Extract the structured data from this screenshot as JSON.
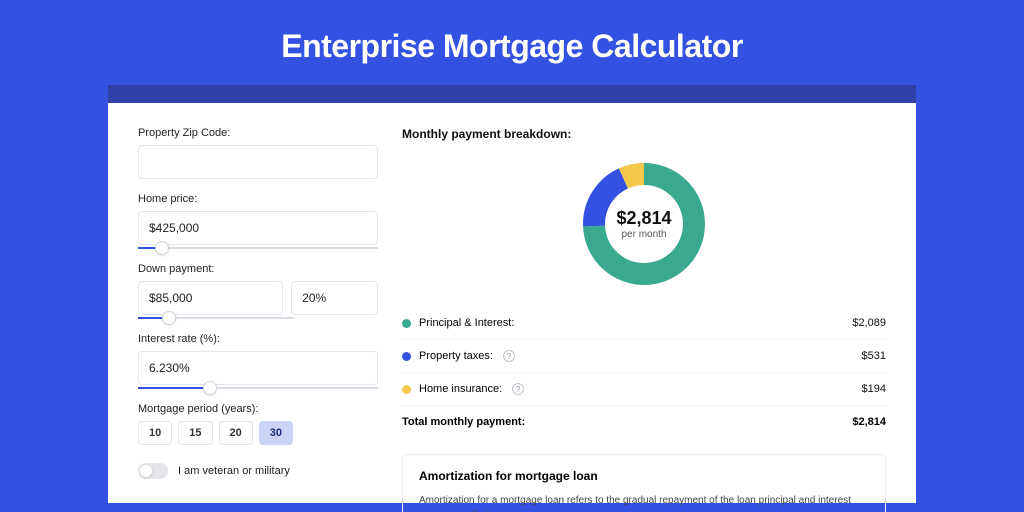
{
  "page": {
    "title": "Enterprise Mortgage Calculator",
    "background_color": "#3452e1",
    "band_color": "#2e41a8",
    "card_background": "#ffffff"
  },
  "form": {
    "zip": {
      "label": "Property Zip Code:",
      "value": ""
    },
    "home_price": {
      "label": "Home price:",
      "value": "$425,000",
      "slider_pct": 10
    },
    "down_payment": {
      "label": "Down payment:",
      "amount": "$85,000",
      "percent": "20%",
      "slider_pct": 20
    },
    "interest_rate": {
      "label": "Interest rate (%):",
      "value": "6.230%",
      "slider_pct": 30
    },
    "period": {
      "label": "Mortgage period (years):",
      "options": [
        "10",
        "15",
        "20",
        "30"
      ],
      "selected": "30"
    },
    "veteran": {
      "label": "I am veteran or military",
      "checked": false
    }
  },
  "breakdown": {
    "title": "Monthly payment breakdown:",
    "center_value": "$2,814",
    "center_sub": "per month",
    "items": [
      {
        "label": "Principal & Interest:",
        "value": "$2,089",
        "color": "#3aaa8f",
        "help": false,
        "pct": 74.2
      },
      {
        "label": "Property taxes:",
        "value": "$531",
        "color": "#3452e1",
        "help": true,
        "pct": 18.9
      },
      {
        "label": "Home insurance:",
        "value": "$194",
        "color": "#f3c84b",
        "help": true,
        "pct": 6.9
      }
    ],
    "total_label": "Total monthly payment:",
    "total_value": "$2,814",
    "donut": {
      "radius": 50,
      "stroke_width": 22
    }
  },
  "amortization": {
    "title": "Amortization for mortgage loan",
    "text": "Amortization for a mortgage loan refers to the gradual repayment of the loan principal and interest over a specified"
  }
}
